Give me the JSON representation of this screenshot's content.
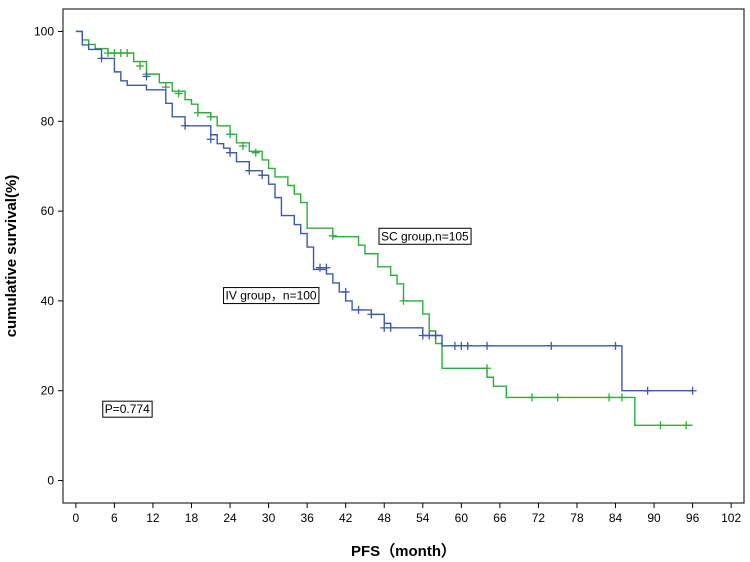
{
  "chart_data": {
    "type": "line",
    "subtype": "kaplan-meier-step",
    "title": "",
    "xlabel": "PFS（month）",
    "ylabel": "cumulative survival(%)",
    "xlim": [
      -2,
      104
    ],
    "ylim": [
      -5,
      105
    ],
    "xticks": [
      0,
      6,
      12,
      18,
      24,
      30,
      36,
      42,
      48,
      54,
      60,
      66,
      72,
      78,
      84,
      90,
      96,
      102
    ],
    "yticks": [
      0,
      20,
      40,
      60,
      80,
      100
    ],
    "grid": false,
    "series": [
      {
        "name": "SC group,n=105",
        "color": "#2eac3c",
        "steps": [
          [
            0,
            100
          ],
          [
            1,
            98.1
          ],
          [
            2,
            97.1
          ],
          [
            3,
            96.2
          ],
          [
            5,
            95.2
          ],
          [
            9,
            93.3
          ],
          [
            11,
            90.5
          ],
          [
            13,
            88.6
          ],
          [
            15,
            86.7
          ],
          [
            17,
            84.8
          ],
          [
            18,
            83.8
          ],
          [
            19,
            81.9
          ],
          [
            21,
            81.0
          ],
          [
            22,
            79.0
          ],
          [
            24,
            77.1
          ],
          [
            25,
            75.2
          ],
          [
            27,
            73.3
          ],
          [
            29,
            71.4
          ],
          [
            30,
            69.5
          ],
          [
            31,
            67.6
          ],
          [
            33,
            65.7
          ],
          [
            34,
            63.8
          ],
          [
            35,
            61.9
          ],
          [
            36,
            56.2
          ],
          [
            40,
            54.3
          ],
          [
            44,
            52.4
          ],
          [
            45,
            50.5
          ],
          [
            47,
            47.6
          ],
          [
            49,
            45.7
          ],
          [
            50,
            43.8
          ],
          [
            51,
            40.0
          ],
          [
            54,
            37.1
          ],
          [
            55,
            33.3
          ],
          [
            56,
            30.5
          ],
          [
            57,
            25.0
          ],
          [
            63,
            25.0
          ],
          [
            64,
            23.0
          ],
          [
            65,
            21.0
          ],
          [
            67,
            18.5
          ],
          [
            86,
            18.5
          ],
          [
            87,
            12.3
          ],
          [
            96,
            12.3
          ]
        ],
        "censored": [
          [
            5,
            95.2
          ],
          [
            6,
            95.2
          ],
          [
            7,
            95.2
          ],
          [
            8,
            95.2
          ],
          [
            10,
            92.3
          ],
          [
            11,
            90.5
          ],
          [
            14,
            87.6
          ],
          [
            16,
            86.2
          ],
          [
            19,
            81.9
          ],
          [
            21,
            81.0
          ],
          [
            24,
            77.1
          ],
          [
            26,
            74.5
          ],
          [
            28,
            73.0
          ],
          [
            40,
            54.5
          ],
          [
            51,
            40.0
          ],
          [
            64,
            25.0
          ],
          [
            71,
            18.5
          ],
          [
            75,
            18.5
          ],
          [
            83,
            18.5
          ],
          [
            85,
            18.5
          ],
          [
            91,
            12.3
          ],
          [
            95,
            12.3
          ]
        ]
      },
      {
        "name": "IV group，n=100",
        "color": "#3d5aa7",
        "steps": [
          [
            0,
            100
          ],
          [
            1,
            97.0
          ],
          [
            2,
            96.0
          ],
          [
            4,
            94.0
          ],
          [
            6,
            91.0
          ],
          [
            7,
            89.0
          ],
          [
            8,
            88.0
          ],
          [
            11,
            87.0
          ],
          [
            14,
            84.0
          ],
          [
            15,
            81.0
          ],
          [
            17,
            79.0
          ],
          [
            21,
            77.0
          ],
          [
            22,
            75.0
          ],
          [
            23,
            74.0
          ],
          [
            24,
            73.0
          ],
          [
            25,
            71.0
          ],
          [
            27,
            69.0
          ],
          [
            29,
            68.0
          ],
          [
            30,
            66.0
          ],
          [
            31,
            63.0
          ],
          [
            32,
            59.0
          ],
          [
            34,
            57.0
          ],
          [
            35,
            55.0
          ],
          [
            36,
            52.0
          ],
          [
            37,
            47.0
          ],
          [
            39,
            46.0
          ],
          [
            40,
            44.0
          ],
          [
            41,
            42.0
          ],
          [
            42,
            40.0
          ],
          [
            43,
            38.0
          ],
          [
            46,
            37.0
          ],
          [
            48,
            35.0
          ],
          [
            49,
            34.0
          ],
          [
            54,
            32.3
          ],
          [
            57,
            30.0
          ],
          [
            85,
            30.0
          ],
          [
            85,
            20.0
          ],
          [
            96,
            20.0
          ]
        ],
        "censored": [
          [
            4,
            94.0
          ],
          [
            11,
            90.0
          ],
          [
            17,
            79.0
          ],
          [
            21,
            76.0
          ],
          [
            24,
            73.0
          ],
          [
            27,
            69.0
          ],
          [
            29,
            68.0
          ],
          [
            38,
            47.4
          ],
          [
            39,
            47.4
          ],
          [
            42,
            42.0
          ],
          [
            44,
            38.0
          ],
          [
            46,
            37.0
          ],
          [
            48,
            34.0
          ],
          [
            49,
            34.0
          ],
          [
            54,
            32.3
          ],
          [
            55,
            32.3
          ],
          [
            56,
            32.3
          ],
          [
            59,
            30.0
          ],
          [
            60,
            30.0
          ],
          [
            61,
            30.0
          ],
          [
            64,
            30.0
          ],
          [
            74,
            30.0
          ],
          [
            84,
            30.0
          ],
          [
            89,
            20.0
          ],
          [
            96,
            20.0
          ]
        ]
      }
    ],
    "annotations": [
      {
        "id": "sc",
        "text": "SC group,n=105",
        "x": 47.5,
        "y": 53.5
      },
      {
        "id": "iv",
        "text": "IV group，n=100",
        "x": 23.3,
        "y": 40.3
      },
      {
        "id": "p",
        "text": "P=0.774",
        "x": 4.5,
        "y": 15.0
      }
    ]
  }
}
